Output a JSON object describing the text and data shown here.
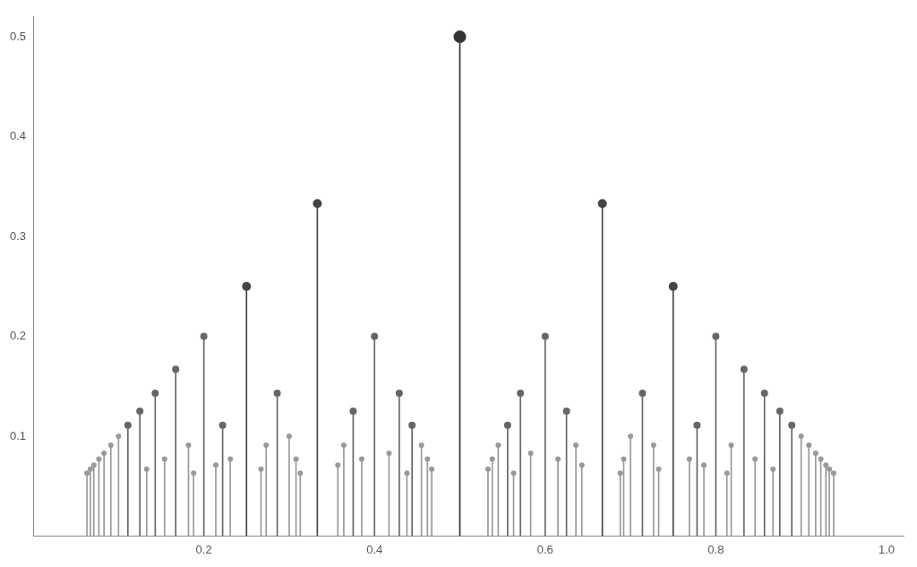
{
  "chart_data": {
    "type": "lollipop",
    "xlim": [
      0,
      1.02
    ],
    "ylim": [
      0,
      0.52
    ],
    "xticks": [
      0.2,
      0.4,
      0.6,
      0.8,
      {
        "value": 1,
        "label": "1.0"
      }
    ],
    "yticks": [
      0.1,
      0.2,
      0.3,
      0.4,
      0.5
    ],
    "marker": "circle",
    "series": [
      {
        "color": "#333333",
        "x": [
          0.5
        ],
        "values": [
          0.5
        ]
      },
      {
        "color": "#444444",
        "x": [
          0.25,
          0.333,
          0.667,
          0.75
        ],
        "values": [
          0.25,
          0.333,
          0.333,
          0.25
        ]
      },
      {
        "color": "#666666",
        "x": [
          0.111,
          0.125,
          0.143,
          0.167,
          0.2,
          0.222,
          0.286,
          0.375,
          0.4,
          0.429,
          0.444,
          0.556,
          0.571,
          0.6,
          0.625,
          0.714,
          0.778,
          0.8,
          0.833,
          0.857,
          0.875,
          0.889
        ],
        "values": [
          0.111,
          0.125,
          0.143,
          0.167,
          0.2,
          0.111,
          0.143,
          0.125,
          0.2,
          0.143,
          0.111,
          0.111,
          0.143,
          0.2,
          0.125,
          0.143,
          0.111,
          0.2,
          0.167,
          0.143,
          0.125,
          0.111
        ]
      },
      {
        "color": "#999999",
        "x": [
          0.063,
          0.067,
          0.071,
          0.077,
          0.083,
          0.091,
          0.1,
          0.133,
          0.154,
          0.182,
          0.188,
          0.214,
          0.231,
          0.267,
          0.273,
          0.3,
          0.308,
          0.313,
          0.357,
          0.364,
          0.385,
          0.417,
          0.438,
          0.455,
          0.462,
          0.467,
          0.533,
          0.538,
          0.545,
          0.563,
          0.583,
          0.615,
          0.636,
          0.643,
          0.688,
          0.692,
          0.7,
          0.727,
          0.733,
          0.769,
          0.786,
          0.813,
          0.818,
          0.846,
          0.867,
          0.9,
          0.909,
          0.917,
          0.923,
          0.929,
          0.933,
          0.938
        ],
        "values": [
          0.063,
          0.067,
          0.071,
          0.077,
          0.083,
          0.091,
          0.1,
          0.067,
          0.077,
          0.091,
          0.063,
          0.071,
          0.077,
          0.067,
          0.091,
          0.1,
          0.077,
          0.063,
          0.071,
          0.091,
          0.077,
          0.083,
          0.063,
          0.091,
          0.077,
          0.067,
          0.067,
          0.077,
          0.091,
          0.063,
          0.083,
          0.077,
          0.091,
          0.071,
          0.063,
          0.077,
          0.1,
          0.091,
          0.067,
          0.077,
          0.071,
          0.063,
          0.091,
          0.077,
          0.067,
          0.1,
          0.091,
          0.083,
          0.077,
          0.071,
          0.067,
          0.063
        ]
      }
    ]
  }
}
